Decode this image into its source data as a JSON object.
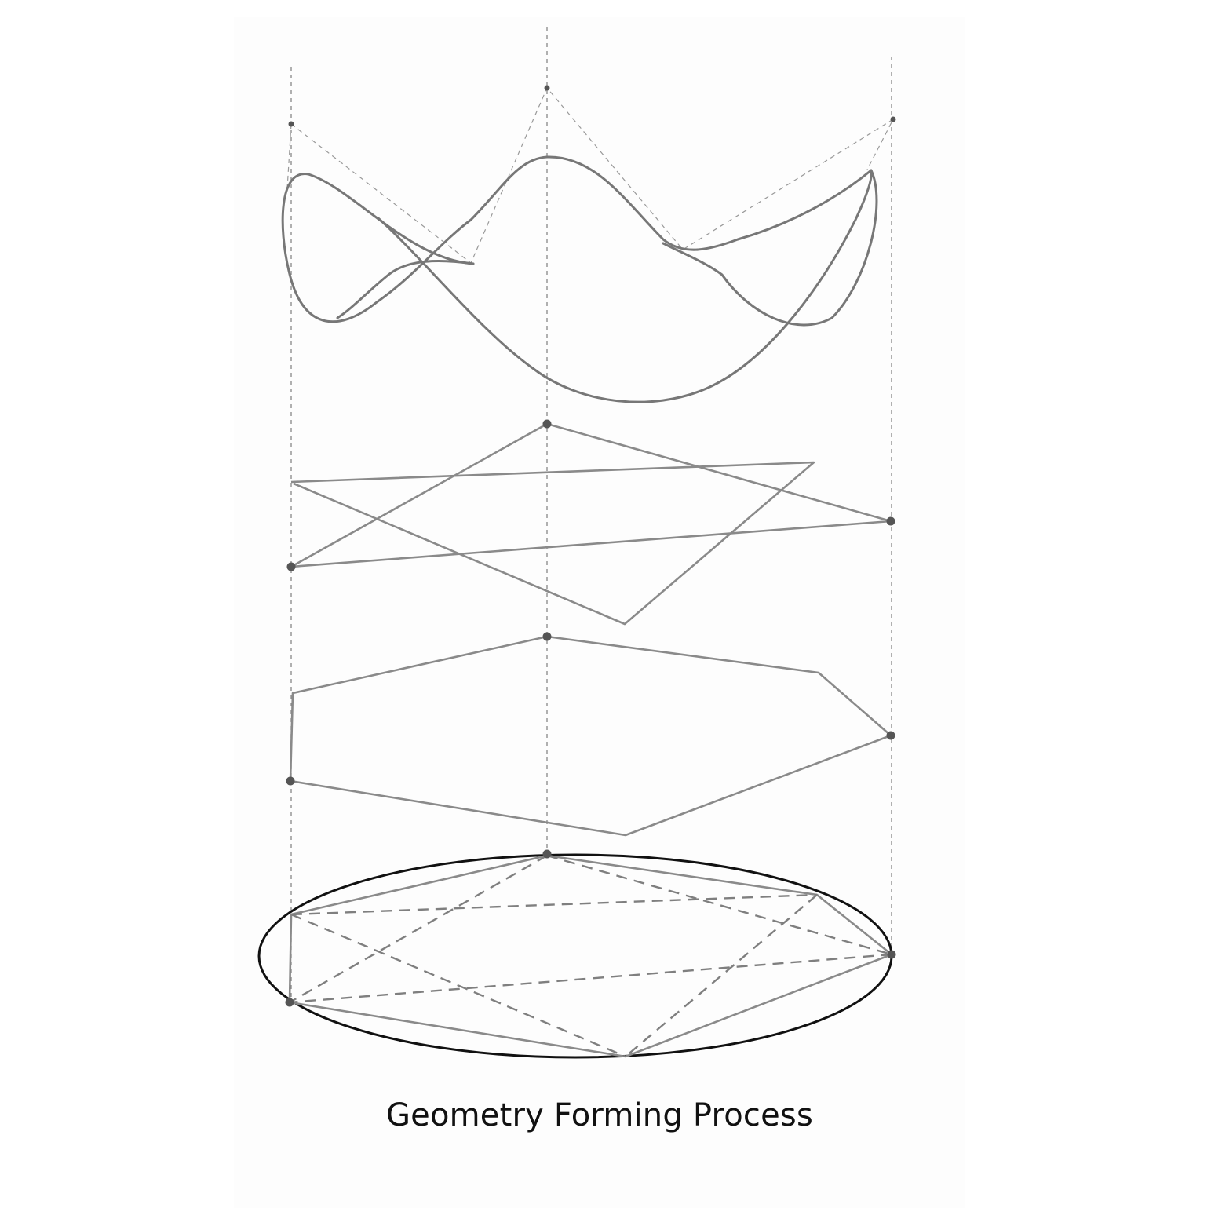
{
  "caption": "Geometry Forming Process",
  "colors": {
    "background": "#ffffff",
    "panel": "#fdfdfd",
    "lines": "#8a8a8a",
    "ellipse": "#111111",
    "nodes": "#555555"
  }
}
